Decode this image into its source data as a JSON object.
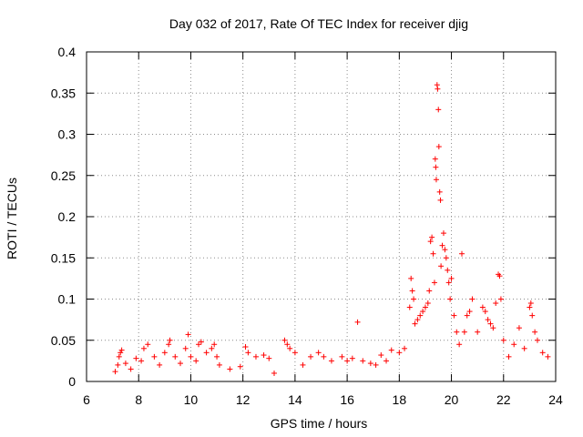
{
  "chart_data": {
    "type": "scatter",
    "title": "Day 032 of 2017, Rate Of TEC Index for receiver djig",
    "xlabel": "GPS time / hours",
    "ylabel": "ROTI / TECUs",
    "xlim": [
      6,
      24
    ],
    "ylim": [
      0,
      0.4
    ],
    "x_ticks": [
      "6",
      "8",
      "10",
      "12",
      "14",
      "16",
      "18",
      "20",
      "22",
      "24"
    ],
    "y_ticks": [
      "0",
      "0.05",
      "0.1",
      "0.15",
      "0.2",
      "0.25",
      "0.3",
      "0.35",
      "0.4"
    ],
    "grid": true,
    "marker": "+",
    "series": [
      {
        "name": "ROTI",
        "color": "#ff0000",
        "envelope_note": "dense scatter; values summarized as time/value samples",
        "points": [
          [
            7.1,
            0.012
          ],
          [
            7.2,
            0.02
          ],
          [
            7.25,
            0.03
          ],
          [
            7.3,
            0.035
          ],
          [
            7.35,
            0.038
          ],
          [
            7.5,
            0.022
          ],
          [
            7.7,
            0.015
          ],
          [
            7.9,
            0.028
          ],
          [
            8.1,
            0.025
          ],
          [
            8.2,
            0.04
          ],
          [
            8.35,
            0.045
          ],
          [
            8.6,
            0.03
          ],
          [
            8.8,
            0.02
          ],
          [
            9.0,
            0.035
          ],
          [
            9.15,
            0.045
          ],
          [
            9.2,
            0.05
          ],
          [
            9.4,
            0.03
          ],
          [
            9.6,
            0.022
          ],
          [
            9.8,
            0.04
          ],
          [
            9.9,
            0.057
          ],
          [
            10.0,
            0.03
          ],
          [
            10.2,
            0.025
          ],
          [
            10.3,
            0.045
          ],
          [
            10.4,
            0.048
          ],
          [
            10.6,
            0.035
          ],
          [
            10.8,
            0.04
          ],
          [
            10.9,
            0.045
          ],
          [
            11.0,
            0.03
          ],
          [
            11.1,
            0.02
          ],
          [
            11.5,
            0.015
          ],
          [
            11.9,
            0.018
          ],
          [
            12.1,
            0.042
          ],
          [
            12.2,
            0.035
          ],
          [
            12.5,
            0.03
          ],
          [
            12.8,
            0.032
          ],
          [
            13.0,
            0.028
          ],
          [
            13.2,
            0.01
          ],
          [
            13.6,
            0.05
          ],
          [
            13.7,
            0.045
          ],
          [
            13.8,
            0.04
          ],
          [
            14.0,
            0.035
          ],
          [
            14.3,
            0.02
          ],
          [
            14.6,
            0.03
          ],
          [
            14.9,
            0.035
          ],
          [
            15.1,
            0.03
          ],
          [
            15.4,
            0.025
          ],
          [
            15.8,
            0.03
          ],
          [
            16.0,
            0.025
          ],
          [
            16.2,
            0.028
          ],
          [
            16.4,
            0.072
          ],
          [
            16.6,
            0.025
          ],
          [
            16.9,
            0.022
          ],
          [
            17.1,
            0.02
          ],
          [
            17.3,
            0.032
          ],
          [
            17.5,
            0.025
          ],
          [
            17.7,
            0.038
          ],
          [
            18.0,
            0.035
          ],
          [
            18.2,
            0.04
          ],
          [
            18.4,
            0.09
          ],
          [
            18.45,
            0.125
          ],
          [
            18.5,
            0.11
          ],
          [
            18.55,
            0.1
          ],
          [
            18.6,
            0.07
          ],
          [
            18.7,
            0.075
          ],
          [
            18.8,
            0.08
          ],
          [
            18.9,
            0.085
          ],
          [
            19.0,
            0.09
          ],
          [
            19.1,
            0.095
          ],
          [
            19.15,
            0.11
          ],
          [
            19.2,
            0.17
          ],
          [
            19.25,
            0.175
          ],
          [
            19.3,
            0.155
          ],
          [
            19.35,
            0.12
          ],
          [
            19.38,
            0.27
          ],
          [
            19.4,
            0.26
          ],
          [
            19.42,
            0.245
          ],
          [
            19.45,
            0.36
          ],
          [
            19.47,
            0.355
          ],
          [
            19.5,
            0.33
          ],
          [
            19.52,
            0.285
          ],
          [
            19.55,
            0.23
          ],
          [
            19.58,
            0.22
          ],
          [
            19.6,
            0.14
          ],
          [
            19.65,
            0.165
          ],
          [
            19.7,
            0.18
          ],
          [
            19.75,
            0.16
          ],
          [
            19.8,
            0.15
          ],
          [
            19.85,
            0.135
          ],
          [
            19.9,
            0.12
          ],
          [
            19.95,
            0.1
          ],
          [
            20.0,
            0.125
          ],
          [
            20.1,
            0.08
          ],
          [
            20.2,
            0.06
          ],
          [
            20.3,
            0.045
          ],
          [
            20.4,
            0.155
          ],
          [
            20.5,
            0.06
          ],
          [
            20.6,
            0.08
          ],
          [
            20.7,
            0.085
          ],
          [
            20.8,
            0.1
          ],
          [
            21.0,
            0.06
          ],
          [
            21.2,
            0.09
          ],
          [
            21.3,
            0.085
          ],
          [
            21.4,
            0.075
          ],
          [
            21.5,
            0.07
          ],
          [
            21.6,
            0.065
          ],
          [
            21.7,
            0.095
          ],
          [
            21.8,
            0.13
          ],
          [
            21.85,
            0.128
          ],
          [
            21.9,
            0.1
          ],
          [
            22.0,
            0.05
          ],
          [
            22.2,
            0.03
          ],
          [
            22.4,
            0.045
          ],
          [
            22.6,
            0.065
          ],
          [
            22.8,
            0.04
          ],
          [
            23.0,
            0.09
          ],
          [
            23.05,
            0.095
          ],
          [
            23.1,
            0.08
          ],
          [
            23.2,
            0.06
          ],
          [
            23.3,
            0.05
          ],
          [
            23.5,
            0.035
          ],
          [
            23.7,
            0.03
          ]
        ]
      }
    ]
  }
}
